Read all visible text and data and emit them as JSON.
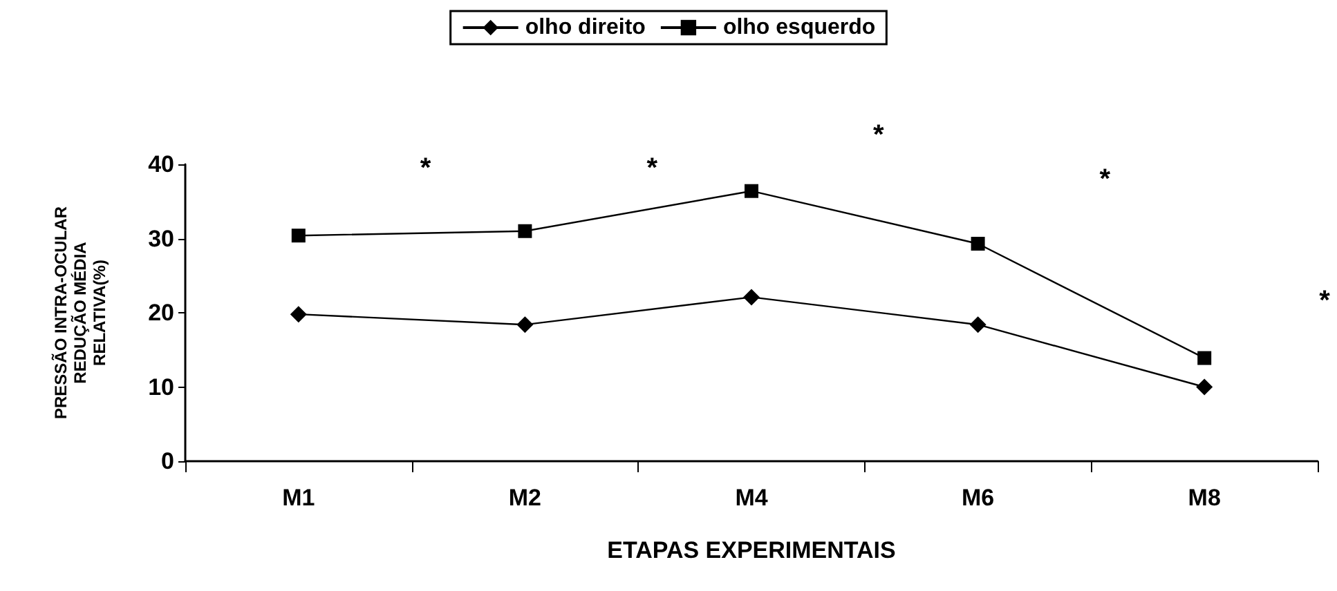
{
  "chart_data": {
    "type": "line",
    "xlabel": "ETAPAS EXPERIMENTAIS",
    "ylabel": "PRESSÃO INTRA-OCULAR\nREDUÇÃO MÉDIA\nRELATIVA(%)",
    "categories": [
      "M1",
      "M2",
      "M4",
      "M6",
      "M8"
    ],
    "series": [
      {
        "name": "olho direito",
        "color": "#000000",
        "marker": "diamond",
        "values": [
          19.8,
          18.4,
          22.1,
          18.4,
          10.0
        ]
      },
      {
        "name": "olho esquerdo",
        "color": "#000000",
        "marker": "square",
        "values": [
          30.4,
          31.0,
          36.4,
          29.3,
          13.9
        ]
      }
    ],
    "ylim": [
      0,
      40
    ],
    "yticks": [
      0,
      10,
      20,
      30,
      40
    ],
    "grid": false,
    "legend": "top",
    "annotations": [
      "*",
      "*",
      "*",
      "*",
      "*"
    ]
  }
}
